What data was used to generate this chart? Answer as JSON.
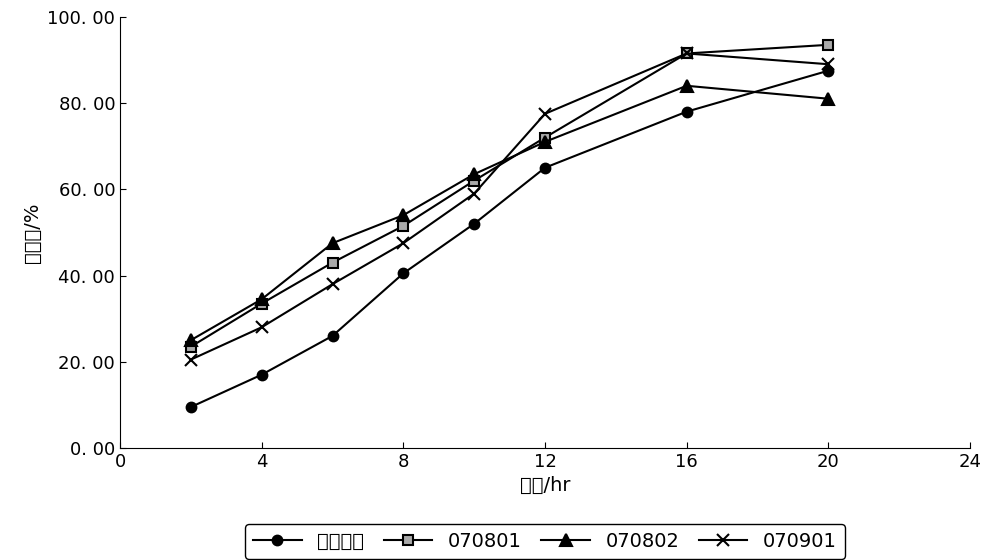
{
  "title": "",
  "xlabel": "时间/hr",
  "ylabel": "释放度/%",
  "xlim": [
    0,
    24
  ],
  "ylim": [
    0,
    100
  ],
  "xticks": [
    0,
    4,
    8,
    12,
    16,
    20,
    24
  ],
  "yticks": [
    0.0,
    20.0,
    40.0,
    60.0,
    80.0,
    100.0
  ],
  "ytick_labels": [
    "0. 00",
    "20. 00",
    "40. 00",
    "60. 00",
    "80. 00",
    "100. 00"
  ],
  "series": [
    {
      "label": "参比样品",
      "x": [
        2,
        4,
        6,
        8,
        10,
        12,
        16,
        20
      ],
      "y": [
        9.5,
        17.0,
        26.0,
        40.5,
        52.0,
        65.0,
        78.0,
        87.5
      ],
      "marker": "o",
      "color": "#000000",
      "linestyle": "-",
      "linewidth": 1.5,
      "markersize": 7,
      "markerfacecolor": "#000000",
      "markeredgecolor": "#000000"
    },
    {
      "label": "070801",
      "x": [
        2,
        4,
        6,
        8,
        10,
        12,
        16,
        20
      ],
      "y": [
        23.5,
        33.5,
        43.0,
        51.5,
        62.0,
        72.0,
        91.5,
        93.5
      ],
      "marker": "s",
      "color": "#000000",
      "linestyle": "-",
      "linewidth": 1.5,
      "markersize": 7,
      "markerfacecolor": "#aaaaaa",
      "markeredgecolor": "#000000"
    },
    {
      "label": "070802",
      "x": [
        2,
        4,
        6,
        8,
        10,
        12,
        16,
        20
      ],
      "y": [
        25.0,
        34.5,
        47.5,
        54.0,
        63.5,
        71.0,
        84.0,
        81.0
      ],
      "marker": "^",
      "color": "#000000",
      "linestyle": "-",
      "linewidth": 1.5,
      "markersize": 8,
      "markerfacecolor": "#000000",
      "markeredgecolor": "#000000"
    },
    {
      "label": "070901",
      "x": [
        2,
        4,
        6,
        8,
        10,
        12,
        16,
        20
      ],
      "y": [
        20.5,
        28.0,
        38.0,
        47.5,
        59.0,
        77.5,
        91.5,
        89.0
      ],
      "marker": "x",
      "color": "#000000",
      "linestyle": "-",
      "linewidth": 1.5,
      "markersize": 9,
      "markerfacecolor": "#000000",
      "markeredgecolor": "#000000"
    }
  ],
  "background_color": "#ffffff",
  "legend_ncol": 4,
  "font_size": 14,
  "tick_font_size": 13,
  "label_font_size": 14
}
